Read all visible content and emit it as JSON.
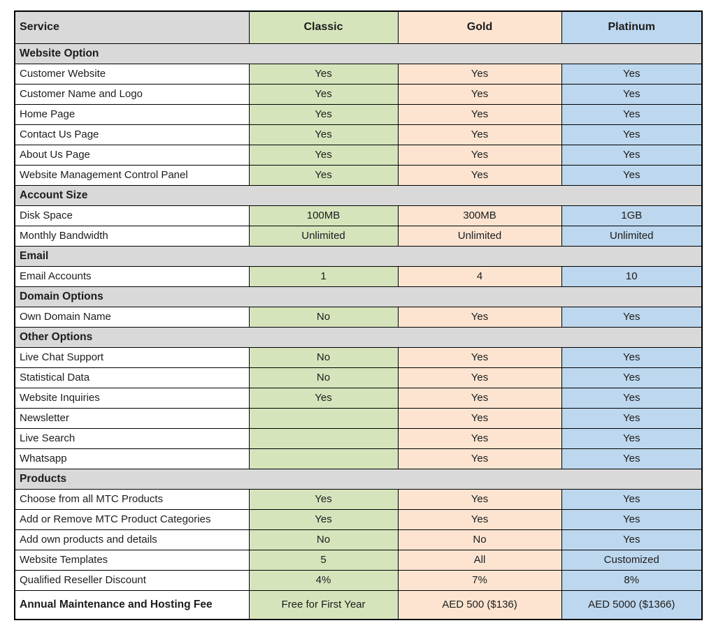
{
  "colors": {
    "classic_bg": "#d6e4bc",
    "gold_bg": "#fce4d1",
    "platinum_bg": "#bdd7ee",
    "section_bg": "#d9d9d9",
    "header_bg": "#d9d9d9",
    "border": "#000000",
    "text": "#1c1c1c"
  },
  "chart_data": {
    "type": "table",
    "columns": [
      "Service",
      "Classic",
      "Gold",
      "Platinum"
    ],
    "sections": [
      {
        "title": "Website Option",
        "rows": [
          {
            "label": "Customer Website",
            "values": [
              "Yes",
              "Yes",
              "Yes"
            ]
          },
          {
            "label": "Customer Name and Logo",
            "values": [
              "Yes",
              "Yes",
              "Yes"
            ]
          },
          {
            "label": "Home Page",
            "values": [
              "Yes",
              "Yes",
              "Yes"
            ]
          },
          {
            "label": "Contact Us Page",
            "values": [
              "Yes",
              "Yes",
              "Yes"
            ]
          },
          {
            "label": "About Us Page",
            "values": [
              "Yes",
              "Yes",
              "Yes"
            ]
          },
          {
            "label": "Website Management Control Panel",
            "values": [
              "Yes",
              "Yes",
              "Yes"
            ]
          }
        ]
      },
      {
        "title": "Account Size",
        "rows": [
          {
            "label": "Disk Space",
            "values": [
              "100MB",
              "300MB",
              "1GB"
            ]
          },
          {
            "label": "Monthly Bandwidth",
            "values": [
              "Unlimited",
              "Unlimited",
              "Unlimited"
            ]
          }
        ]
      },
      {
        "title": "Email",
        "rows": [
          {
            "label": "Email Accounts",
            "values": [
              "1",
              "4",
              "10"
            ]
          }
        ]
      },
      {
        "title": "Domain Options",
        "rows": [
          {
            "label": "Own Domain Name",
            "values": [
              "No",
              "Yes",
              "Yes"
            ]
          }
        ]
      },
      {
        "title": "Other Options",
        "rows": [
          {
            "label": "Live Chat Support",
            "values": [
              "No",
              "Yes",
              "Yes"
            ]
          },
          {
            "label": "Statistical Data",
            "values": [
              "No",
              "Yes",
              "Yes"
            ]
          },
          {
            "label": "Website Inquiries",
            "values": [
              "Yes",
              "Yes",
              "Yes"
            ]
          },
          {
            "label": "Newsletter",
            "values": [
              "",
              "Yes",
              "Yes"
            ]
          },
          {
            "label": "Live Search",
            "values": [
              "",
              "Yes",
              "Yes"
            ]
          },
          {
            "label": "Whatsapp",
            "values": [
              "",
              "Yes",
              "Yes"
            ]
          }
        ]
      },
      {
        "title": "Products",
        "rows": [
          {
            "label": "Choose from all MTC Products",
            "values": [
              "Yes",
              "Yes",
              "Yes"
            ]
          },
          {
            "label": "Add or Remove MTC Product Categories",
            "values": [
              "Yes",
              "Yes",
              "Yes"
            ]
          },
          {
            "label": "Add own products and details",
            "values": [
              "No",
              "No",
              "Yes"
            ]
          },
          {
            "label": "Website Templates",
            "values": [
              "5",
              "All",
              "Customized"
            ]
          },
          {
            "label": "Qualified Reseller Discount",
            "values": [
              "4%",
              "7%",
              "8%"
            ]
          }
        ]
      }
    ],
    "footer": {
      "label": "Annual Maintenance and Hosting Fee",
      "values": [
        "Free for First Year",
        "AED 500 ($136)",
        "AED 5000 ($1366)"
      ]
    }
  }
}
